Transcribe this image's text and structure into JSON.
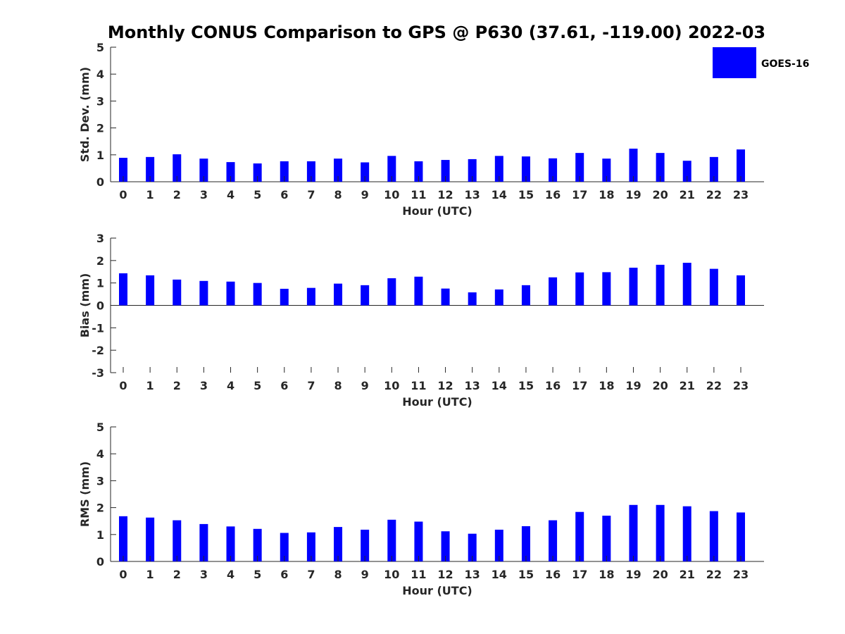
{
  "title": "Monthly CONUS Comparison to GPS @ P630 (37.61, -119.00) 2022-03",
  "legend": {
    "label": "GOES-16",
    "color": "#0000ff"
  },
  "chart_data": [
    {
      "type": "bar",
      "name": "std_dev",
      "xlabel": "Hour (UTC)",
      "ylabel": "Std. Dev. (mm)",
      "ylim": [
        0,
        5
      ],
      "yticks": [
        0,
        1,
        2,
        3,
        4,
        5
      ],
      "categories": [
        "0",
        "1",
        "2",
        "3",
        "4",
        "5",
        "6",
        "7",
        "8",
        "9",
        "10",
        "11",
        "12",
        "13",
        "14",
        "15",
        "16",
        "17",
        "18",
        "19",
        "20",
        "21",
        "22",
        "23"
      ],
      "series": [
        {
          "name": "GOES-16",
          "color": "#0000ff",
          "values": [
            0.89,
            0.92,
            1.02,
            0.86,
            0.73,
            0.68,
            0.76,
            0.76,
            0.86,
            0.72,
            0.96,
            0.76,
            0.81,
            0.84,
            0.96,
            0.94,
            0.87,
            1.07,
            0.86,
            1.23,
            1.07,
            0.78,
            0.92,
            1.2
          ]
        }
      ]
    },
    {
      "type": "bar",
      "name": "bias",
      "xlabel": "Hour (UTC)",
      "ylabel": "Bias (mm)",
      "ylim": [
        -3,
        3
      ],
      "yticks": [
        -3,
        -2,
        -1,
        0,
        1,
        2,
        3
      ],
      "categories": [
        "0",
        "1",
        "2",
        "3",
        "4",
        "5",
        "6",
        "7",
        "8",
        "9",
        "10",
        "11",
        "12",
        "13",
        "14",
        "15",
        "16",
        "17",
        "18",
        "19",
        "20",
        "21",
        "22",
        "23"
      ],
      "series": [
        {
          "name": "GOES-16",
          "color": "#0000ff",
          "values": [
            1.43,
            1.34,
            1.15,
            1.09,
            1.06,
            1.0,
            0.74,
            0.78,
            0.97,
            0.9,
            1.21,
            1.28,
            0.75,
            0.58,
            0.71,
            0.9,
            1.25,
            1.47,
            1.48,
            1.68,
            1.81,
            1.9,
            1.63,
            1.34
          ]
        }
      ]
    },
    {
      "type": "bar",
      "name": "rms",
      "xlabel": "Hour (UTC)",
      "ylabel": "RMS (mm)",
      "ylim": [
        0,
        5
      ],
      "yticks": [
        0,
        1,
        2,
        3,
        4,
        5
      ],
      "categories": [
        "0",
        "1",
        "2",
        "3",
        "4",
        "5",
        "6",
        "7",
        "8",
        "9",
        "10",
        "11",
        "12",
        "13",
        "14",
        "15",
        "16",
        "17",
        "18",
        "19",
        "20",
        "21",
        "22",
        "23"
      ],
      "series": [
        {
          "name": "GOES-16",
          "color": "#0000ff",
          "values": [
            1.68,
            1.63,
            1.53,
            1.39,
            1.3,
            1.21,
            1.06,
            1.08,
            1.28,
            1.18,
            1.55,
            1.48,
            1.12,
            1.03,
            1.18,
            1.31,
            1.53,
            1.84,
            1.7,
            2.1,
            2.1,
            2.05,
            1.87,
            1.82
          ]
        }
      ]
    }
  ]
}
